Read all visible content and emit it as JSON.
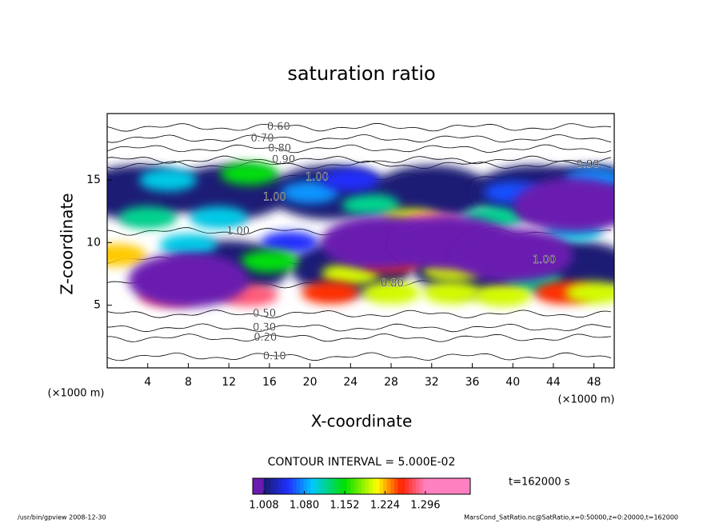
{
  "chart_data": {
    "type": "contour",
    "title": "saturation ratio",
    "x_label": "X-coordinate",
    "y_label": "Z-coordinate",
    "x_unit_label": "(×1000 m)",
    "y_unit_label": "(×1000 m)",
    "xlim": [
      0,
      50
    ],
    "xticks": [
      4,
      8,
      12,
      16,
      20,
      24,
      28,
      32,
      36,
      40,
      44,
      48
    ],
    "ylim": [
      0,
      20.3
    ],
    "yticks": [
      5,
      10,
      15
    ],
    "field": {
      "x": [
        3,
        12,
        22,
        32,
        42,
        48,
        12,
        24,
        36,
        46,
        6,
        14,
        4,
        11,
        20,
        26,
        38,
        46,
        48,
        24,
        40,
        18,
        1,
        8,
        16,
        24,
        28,
        34,
        42,
        30,
        32,
        6,
        14,
        22,
        28,
        34,
        39,
        45,
        48,
        8,
        27,
        34,
        40,
        46
      ],
      "y": [
        14,
        14,
        14,
        14,
        14,
        14,
        8,
        8,
        8,
        8,
        15,
        15.5,
        12,
        12,
        14,
        13,
        12,
        11,
        15,
        15,
        14,
        10,
        9,
        9.8,
        8.5,
        7.5,
        8.5,
        7.8,
        7,
        11.8,
        11.5,
        5.8,
        5.8,
        6,
        6,
        6,
        5.8,
        6,
        6,
        7,
        10,
        10,
        9,
        13
      ],
      "values": [
        1.01,
        1.01,
        1.01,
        1.01,
        1.01,
        1.01,
        1.01,
        1.01,
        1.01,
        1.01,
        1.1,
        1.15,
        1.12,
        1.1,
        1.08,
        1.12,
        1.12,
        1.1,
        1.08,
        1.05,
        1.06,
        1.05,
        1.22,
        1.1,
        1.15,
        1.2,
        1.25,
        1.2,
        1.12,
        1.2,
        1.29,
        1.28,
        1.28,
        1.25,
        1.2,
        1.2,
        1.2,
        1.25,
        1.2,
        1.0,
        1.0,
        1.0,
        1.0,
        1.0
      ]
    },
    "contour_labels": {
      "x": [
        16.9,
        15.3,
        17.0,
        17.4,
        20.7,
        16.5,
        12.9,
        47.4,
        43.1,
        28.1,
        15.5,
        15.5,
        15.6,
        16.5
      ],
      "y": [
        19.2,
        18.3,
        17.5,
        16.6,
        15.2,
        13.6,
        10.9,
        16.2,
        8.6,
        6.7,
        4.3,
        3.2,
        2.4,
        0.9
      ],
      "values": [
        0.6,
        0.7,
        0.8,
        0.9,
        1.0,
        1.0,
        1.0,
        0.9,
        1.0,
        0.8,
        0.5,
        0.3,
        0.2,
        0.1
      ],
      "value_labels": [
        "0.60",
        "0.70",
        "0.80",
        "0.90",
        "1.00",
        "1.00",
        "1.00",
        "0.90",
        "1.00",
        "0.80",
        "0.50",
        "0.30",
        "0.20",
        "0.10"
      ]
    },
    "colorbar": {
      "lim": [
        0.988,
        1.376
      ],
      "ticks": [
        {
          "value": 1.008,
          "label": "1.008"
        },
        {
          "value": 1.08,
          "label": "1.080"
        },
        {
          "value": 1.152,
          "label": "1.152"
        },
        {
          "value": 1.224,
          "label": "1.224"
        },
        {
          "value": 1.296,
          "label": "1.296"
        }
      ]
    },
    "contour_interval": "CONTOUR INTERVAL = 5.000E-02",
    "time_label": "t=162000 s",
    "footer_left": "/usr/bin/gpview   2008-12-30",
    "footer_right": "MarsCond_SatRatio.nc@SatRatio,x=0:50000,z=0:20000,t=162000"
  }
}
